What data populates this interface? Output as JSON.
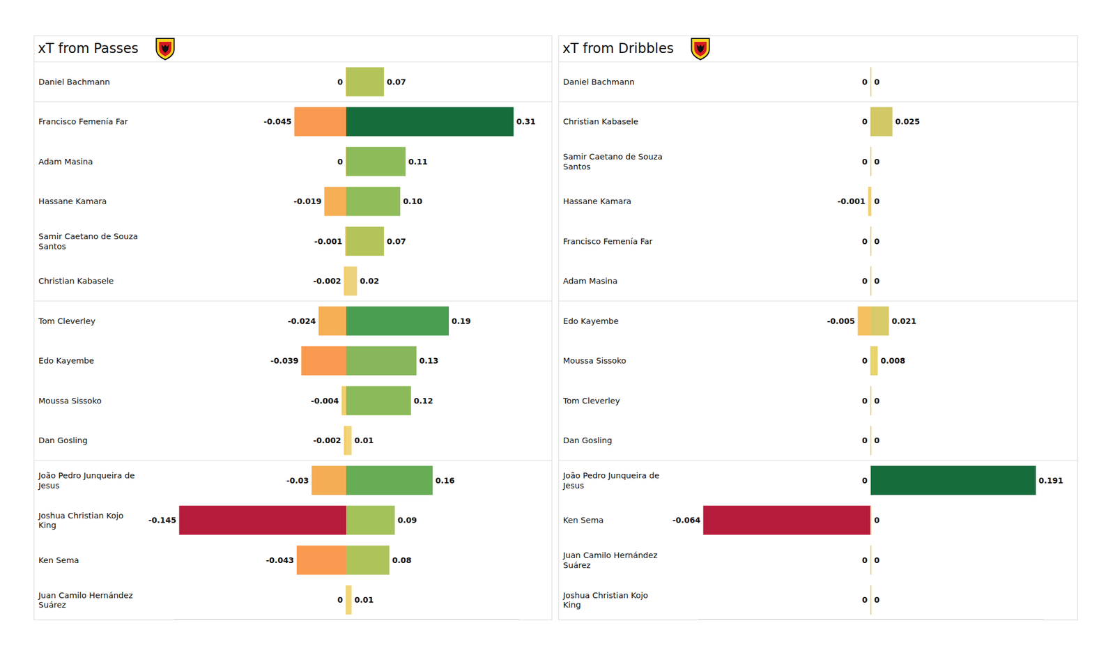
{
  "chart_data": [
    {
      "type": "bar",
      "orientation": "horizontal",
      "stacked": true,
      "data_labels": true,
      "tick_labels": "y",
      "title": "xT from Passes",
      "categories": [
        "Daniel Bachmann",
        "Francisco Femenía Far",
        "Adam Masina",
        "Hassane Kamara",
        "Samir Caetano de Souza Santos",
        "Christian Kabasele",
        "Tom Cleverley",
        "Edo Kayembe",
        "Moussa Sissoko",
        "Dan Gosling",
        "João Pedro Junqueira de Jesus",
        "Joshua Christian Kojo King",
        "Ken Sema",
        "Juan Camilo Hernández Suárez"
      ],
      "xlim": [
        -0.15,
        0.32
      ],
      "series": [
        {
          "values": [
            0,
            -0.045,
            0,
            -0.019,
            -0.001,
            -0.002,
            -0.024,
            -0.039,
            -0.004,
            -0.002,
            -0.03,
            -0.145,
            -0.043,
            0
          ],
          "value_labels": [
            "0",
            "-0.045",
            "0",
            "-0.019",
            "-0.001",
            "-0.002",
            "-0.024",
            "-0.039",
            "-0.004",
            "-0.002",
            "-0.03",
            "-0.145",
            "-0.043",
            "0"
          ],
          "colors": [
            "#f0d57b",
            "#f99a50",
            "#f0d57b",
            "#f5b055",
            "#f3cd6c",
            "#f3cd6c",
            "#f5b055",
            "#f99a50",
            "#f3cd6c",
            "#f3cd6c",
            "#f5ad55",
            "#b71c3c",
            "#f99a50",
            "#f0d57b"
          ]
        },
        {
          "values": [
            0.07,
            0.31,
            0.11,
            0.1,
            0.07,
            0.02,
            0.19,
            0.13,
            0.12,
            0.01,
            0.16,
            0.09,
            0.08,
            0.01
          ],
          "value_labels": [
            "0.07",
            "0.31",
            "0.11",
            "0.10",
            "0.07",
            "0.02",
            "0.19",
            "0.13",
            "0.12",
            "0.01",
            "0.16",
            "0.09",
            "0.08",
            "0.01"
          ],
          "colors": [
            "#b5c45a",
            "#166d3b",
            "#8dbb5a",
            "#90bc5a",
            "#b5c45a",
            "#ecd27a",
            "#4a9e52",
            "#87b75a",
            "#8bba5a",
            "#f0d57b",
            "#66ad56",
            "#a4c25a",
            "#aec45b",
            "#f0d57b"
          ]
        }
      ]
    },
    {
      "type": "bar",
      "orientation": "horizontal",
      "stacked": true,
      "data_labels": true,
      "tick_labels": "y",
      "title": "xT from Dribbles",
      "categories": [
        "Daniel Bachmann",
        "Christian Kabasele",
        "Samir Caetano de Souza Santos",
        "Hassane Kamara",
        "Francisco Femenía Far",
        "Adam Masina",
        "Edo Kayembe",
        "Moussa Sissoko",
        "Tom Cleverley",
        "Dan Gosling",
        "João Pedro Junqueira de Jesus",
        "Ken Sema",
        "Juan Camilo Hernández Suárez",
        "Joshua Christian Kojo King"
      ],
      "xlim": [
        -0.066,
        0.2
      ],
      "series": [
        {
          "values": [
            0,
            0,
            0,
            -0.001,
            0,
            0,
            -0.005,
            0,
            0,
            0,
            0,
            -0.064,
            0,
            0
          ],
          "value_labels": [
            "0",
            "0",
            "0",
            "-0.001",
            "0",
            "0",
            "-0.005",
            "0",
            "0",
            "0",
            "0",
            "-0.064",
            "0",
            "0"
          ],
          "colors": [
            "#f0d57b",
            "#f0d57b",
            "#f0d57b",
            "#f3cf6b",
            "#f0d57b",
            "#f0d57b",
            "#f5c060",
            "#f0d57b",
            "#f0d57b",
            "#f0d57b",
            "#f0d57b",
            "#b71c3c",
            "#f0d57b",
            "#f0d57b"
          ]
        },
        {
          "values": [
            0,
            0.025,
            0,
            0,
            0,
            0,
            0.021,
            0.008,
            0,
            0,
            0.191,
            0,
            0,
            0
          ],
          "value_labels": [
            "0",
            "0.025",
            "0",
            "0",
            "0",
            "0",
            "0.021",
            "0.008",
            "0",
            "0",
            "0.191",
            "0",
            "0",
            "0"
          ],
          "colors": [
            "#f0d57b",
            "#d2c865",
            "#f0d57b",
            "#f0d57b",
            "#f0d57b",
            "#f0d57b",
            "#d8ca68",
            "#e8d46c",
            "#f0d57b",
            "#f0d57b",
            "#166d3b",
            "#f0d57b",
            "#f0d57b",
            "#f0d57b"
          ]
        }
      ]
    }
  ]
}
